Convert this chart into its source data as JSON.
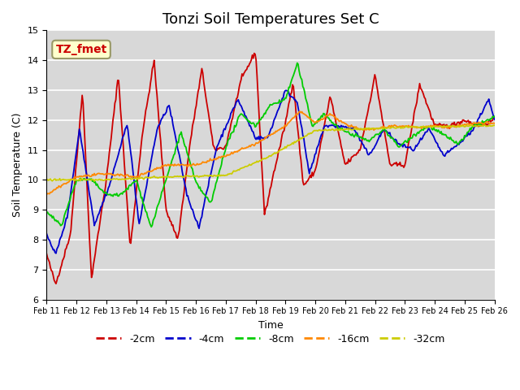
{
  "title": "Tonzi Soil Temperatures Set C",
  "xlabel": "Time",
  "ylabel": "Soil Temperature (C)",
  "ylim": [
    6.0,
    15.0
  ],
  "yticks": [
    6.0,
    7.0,
    8.0,
    9.0,
    10.0,
    11.0,
    12.0,
    13.0,
    14.0,
    15.0
  ],
  "xtick_labels": [
    "Feb 11",
    "Feb 12",
    "Feb 13",
    "Feb 14",
    "Feb 15",
    "Feb 16",
    "Feb 17",
    "Feb 18",
    "Feb 19",
    "Feb 20",
    "Feb 21",
    "Feb 22",
    "Feb 23",
    "Feb 24",
    "Feb 25",
    "Feb 26"
  ],
  "series_colors": [
    "#cc0000",
    "#0000cc",
    "#00cc00",
    "#ff8800",
    "#cccc00"
  ],
  "series_labels": [
    "-2cm",
    "-4cm",
    "-8cm",
    "-16cm",
    "-32cm"
  ],
  "annotation_text": "TZ_fmet",
  "annotation_color": "#cc0000",
  "annotation_bg": "#ffffcc",
  "background_color": "#d8d8d8",
  "grid_color": "#ffffff",
  "title_fontsize": 13,
  "legend_fontsize": 9,
  "n_points": 480,
  "days": 15
}
